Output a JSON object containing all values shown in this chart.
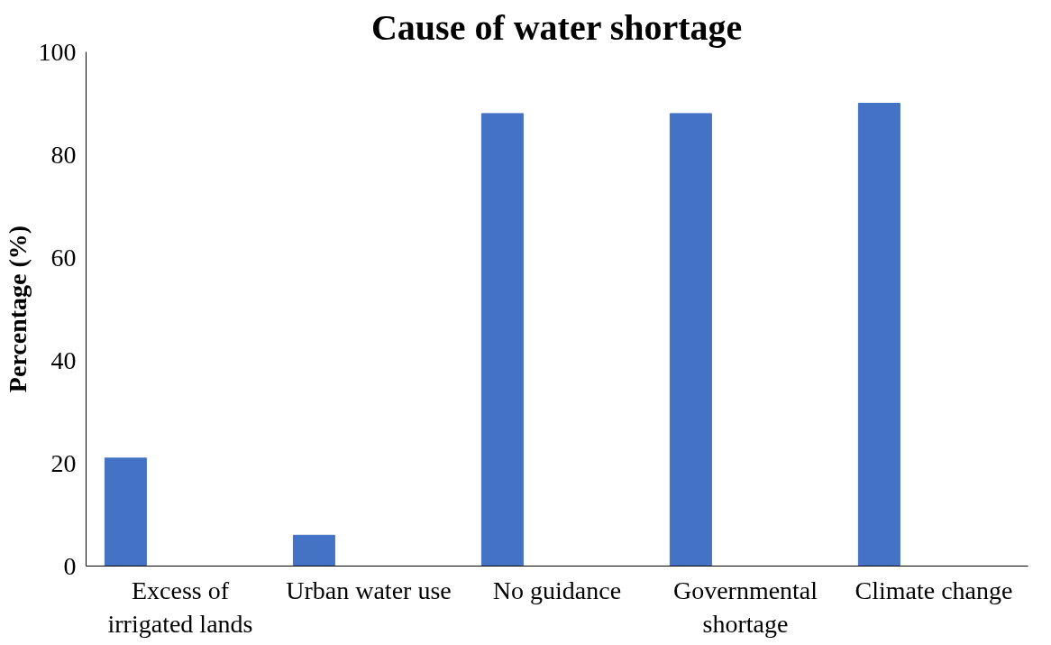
{
  "chart_data": {
    "type": "bar",
    "title": "Cause of water shortage",
    "ylabel": "Percentage (%)",
    "categories": [
      "Excess of irrigated lands",
      "Urban water use",
      "No guidance",
      "Governmental shortage",
      "Climate change"
    ],
    "values": [
      21,
      6,
      88,
      88,
      90
    ],
    "color": "#4472c4",
    "ylim": [
      0,
      100
    ],
    "yticks": [
      0,
      20,
      40,
      60,
      80,
      100
    ],
    "grid": false
  }
}
